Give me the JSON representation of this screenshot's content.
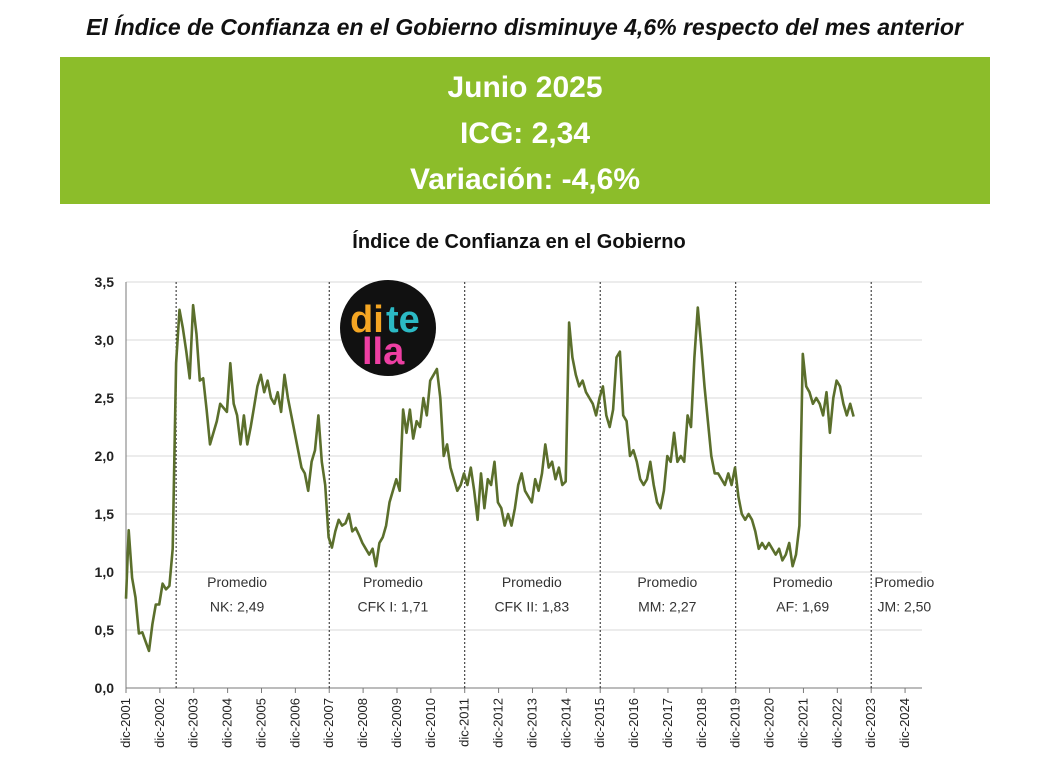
{
  "headline": "El Índice de Confianza en el Gobierno disminuye 4,6% respecto del mes anterior",
  "banner": {
    "period": "Junio 2025",
    "icg": "ICG: 2,34",
    "variation": "Variación: -4,6%",
    "color": "#8cbd2a"
  },
  "logo": {
    "text_top": "di te",
    "text_bottom": "lla",
    "icon": "ditella-logo"
  },
  "chart_data": {
    "type": "line",
    "title": "Índice de Confianza en el Gobierno",
    "xlabel": "",
    "ylabel": "",
    "ylim": [
      0,
      3.5
    ],
    "yticks": [
      "0,0",
      "0,5",
      "1,0",
      "1,5",
      "2,0",
      "2,5",
      "3,0",
      "3,5"
    ],
    "xlim": [
      2001.92,
      2025.42
    ],
    "xticks": [
      "dic-2001",
      "dic-2002",
      "dic-2003",
      "dic-2004",
      "dic-2005",
      "dic-2006",
      "dic-2007",
      "dic-2008",
      "dic-2009",
      "dic-2010",
      "dic-2011",
      "dic-2012",
      "dic-2013",
      "dic-2014",
      "dic-2015",
      "dic-2016",
      "dic-2017",
      "dic-2018",
      "dic-2019",
      "dic-2020",
      "dic-2021",
      "dic-2022",
      "dic-2023",
      "dic-2024"
    ],
    "line_color": "#5b6f2c",
    "series": [
      {
        "values": [
          [
            2001.92,
            0.77
          ],
          [
            2002.0,
            1.36
          ],
          [
            2002.1,
            0.95
          ],
          [
            2002.2,
            0.78
          ],
          [
            2002.3,
            0.47
          ],
          [
            2002.4,
            0.48
          ],
          [
            2002.5,
            0.4
          ],
          [
            2002.6,
            0.32
          ],
          [
            2002.7,
            0.55
          ],
          [
            2002.8,
            0.72
          ],
          [
            2002.9,
            0.72
          ],
          [
            2003.0,
            0.9
          ],
          [
            2003.1,
            0.85
          ],
          [
            2003.2,
            0.88
          ],
          [
            2003.3,
            1.2
          ],
          [
            2003.4,
            2.8
          ],
          [
            2003.5,
            3.26
          ],
          [
            2003.6,
            3.1
          ],
          [
            2003.7,
            2.9
          ],
          [
            2003.8,
            2.67
          ],
          [
            2003.9,
            3.3
          ],
          [
            2004.0,
            3.05
          ],
          [
            2004.1,
            2.65
          ],
          [
            2004.2,
            2.67
          ],
          [
            2004.3,
            2.4
          ],
          [
            2004.4,
            2.1
          ],
          [
            2004.6,
            2.3
          ],
          [
            2004.7,
            2.45
          ],
          [
            2004.9,
            2.38
          ],
          [
            2005.0,
            2.8
          ],
          [
            2005.1,
            2.45
          ],
          [
            2005.2,
            2.35
          ],
          [
            2005.3,
            2.1
          ],
          [
            2005.4,
            2.35
          ],
          [
            2005.5,
            2.1
          ],
          [
            2005.6,
            2.25
          ],
          [
            2005.7,
            2.42
          ],
          [
            2005.8,
            2.6
          ],
          [
            2005.9,
            2.7
          ],
          [
            2006.0,
            2.55
          ],
          [
            2006.1,
            2.65
          ],
          [
            2006.2,
            2.5
          ],
          [
            2006.3,
            2.45
          ],
          [
            2006.4,
            2.55
          ],
          [
            2006.5,
            2.38
          ],
          [
            2006.6,
            2.7
          ],
          [
            2006.7,
            2.5
          ],
          [
            2006.8,
            2.35
          ],
          [
            2006.9,
            2.2
          ],
          [
            2007.0,
            2.05
          ],
          [
            2007.1,
            1.9
          ],
          [
            2007.2,
            1.85
          ],
          [
            2007.3,
            1.7
          ],
          [
            2007.4,
            1.95
          ],
          [
            2007.5,
            2.05
          ],
          [
            2007.6,
            2.35
          ],
          [
            2007.7,
            1.95
          ],
          [
            2007.8,
            1.75
          ],
          [
            2007.9,
            1.3
          ],
          [
            2008.0,
            1.21
          ],
          [
            2008.1,
            1.35
          ],
          [
            2008.2,
            1.45
          ],
          [
            2008.3,
            1.4
          ],
          [
            2008.4,
            1.42
          ],
          [
            2008.5,
            1.5
          ],
          [
            2008.6,
            1.35
          ],
          [
            2008.7,
            1.38
          ],
          [
            2008.8,
            1.32
          ],
          [
            2008.9,
            1.25
          ],
          [
            2009.0,
            1.2
          ],
          [
            2009.1,
            1.15
          ],
          [
            2009.2,
            1.2
          ],
          [
            2009.3,
            1.05
          ],
          [
            2009.4,
            1.25
          ],
          [
            2009.5,
            1.3
          ],
          [
            2009.6,
            1.4
          ],
          [
            2009.7,
            1.6
          ],
          [
            2009.8,
            1.7
          ],
          [
            2009.9,
            1.8
          ],
          [
            2010.0,
            1.7
          ],
          [
            2010.1,
            2.4
          ],
          [
            2010.2,
            2.2
          ],
          [
            2010.3,
            2.4
          ],
          [
            2010.4,
            2.15
          ],
          [
            2010.5,
            2.3
          ],
          [
            2010.6,
            2.25
          ],
          [
            2010.7,
            2.5
          ],
          [
            2010.8,
            2.35
          ],
          [
            2010.9,
            2.65
          ],
          [
            2011.0,
            2.7
          ],
          [
            2011.1,
            2.75
          ],
          [
            2011.2,
            2.5
          ],
          [
            2011.3,
            2.0
          ],
          [
            2011.4,
            2.1
          ],
          [
            2011.5,
            1.9
          ],
          [
            2011.6,
            1.8
          ],
          [
            2011.7,
            1.7
          ],
          [
            2011.8,
            1.75
          ],
          [
            2011.9,
            1.85
          ],
          [
            2012.0,
            1.75
          ],
          [
            2012.1,
            1.9
          ],
          [
            2012.2,
            1.7
          ],
          [
            2012.3,
            1.45
          ],
          [
            2012.4,
            1.85
          ],
          [
            2012.5,
            1.55
          ],
          [
            2012.6,
            1.8
          ],
          [
            2012.7,
            1.75
          ],
          [
            2012.8,
            1.95
          ],
          [
            2012.9,
            1.6
          ],
          [
            2013.0,
            1.55
          ],
          [
            2013.1,
            1.4
          ],
          [
            2013.2,
            1.5
          ],
          [
            2013.3,
            1.4
          ],
          [
            2013.4,
            1.55
          ],
          [
            2013.5,
            1.75
          ],
          [
            2013.6,
            1.85
          ],
          [
            2013.7,
            1.7
          ],
          [
            2013.8,
            1.65
          ],
          [
            2013.9,
            1.6
          ],
          [
            2014.0,
            1.8
          ],
          [
            2014.1,
            1.7
          ],
          [
            2014.2,
            1.85
          ],
          [
            2014.3,
            2.1
          ],
          [
            2014.4,
            1.9
          ],
          [
            2014.5,
            1.95
          ],
          [
            2014.6,
            1.8
          ],
          [
            2014.7,
            1.9
          ],
          [
            2014.8,
            1.75
          ],
          [
            2014.9,
            1.78
          ],
          [
            2015.0,
            3.15
          ],
          [
            2015.1,
            2.85
          ],
          [
            2015.2,
            2.7
          ],
          [
            2015.3,
            2.6
          ],
          [
            2015.4,
            2.65
          ],
          [
            2015.5,
            2.55
          ],
          [
            2015.6,
            2.5
          ],
          [
            2015.7,
            2.45
          ],
          [
            2015.8,
            2.35
          ],
          [
            2015.9,
            2.5
          ],
          [
            2016.0,
            2.6
          ],
          [
            2016.1,
            2.35
          ],
          [
            2016.2,
            2.25
          ],
          [
            2016.3,
            2.4
          ],
          [
            2016.4,
            2.85
          ],
          [
            2016.5,
            2.9
          ],
          [
            2016.6,
            2.35
          ],
          [
            2016.7,
            2.3
          ],
          [
            2016.8,
            2.0
          ],
          [
            2016.9,
            2.05
          ],
          [
            2017.0,
            1.95
          ],
          [
            2017.1,
            1.8
          ],
          [
            2017.2,
            1.75
          ],
          [
            2017.3,
            1.8
          ],
          [
            2017.4,
            1.95
          ],
          [
            2017.5,
            1.75
          ],
          [
            2017.6,
            1.6
          ],
          [
            2017.7,
            1.55
          ],
          [
            2017.8,
            1.7
          ],
          [
            2017.9,
            2.0
          ],
          [
            2018.0,
            1.95
          ],
          [
            2018.1,
            2.2
          ],
          [
            2018.2,
            1.95
          ],
          [
            2018.3,
            2.0
          ],
          [
            2018.4,
            1.95
          ],
          [
            2018.5,
            2.35
          ],
          [
            2018.6,
            2.25
          ],
          [
            2018.7,
            2.85
          ],
          [
            2018.8,
            3.28
          ],
          [
            2018.9,
            2.95
          ],
          [
            2019.0,
            2.6
          ],
          [
            2019.1,
            2.3
          ],
          [
            2019.2,
            2.0
          ],
          [
            2019.3,
            1.85
          ],
          [
            2019.4,
            1.85
          ],
          [
            2019.5,
            1.8
          ],
          [
            2019.6,
            1.75
          ],
          [
            2019.7,
            1.85
          ],
          [
            2019.8,
            1.75
          ],
          [
            2019.9,
            1.9
          ],
          [
            2020.0,
            1.65
          ],
          [
            2020.1,
            1.5
          ],
          [
            2020.2,
            1.45
          ],
          [
            2020.3,
            1.5
          ],
          [
            2020.4,
            1.45
          ],
          [
            2020.5,
            1.35
          ],
          [
            2020.6,
            1.2
          ],
          [
            2020.7,
            1.25
          ],
          [
            2020.8,
            1.2
          ],
          [
            2020.9,
            1.25
          ],
          [
            2021.0,
            1.2
          ],
          [
            2021.1,
            1.15
          ],
          [
            2021.2,
            1.2
          ],
          [
            2021.3,
            1.1
          ],
          [
            2021.4,
            1.15
          ],
          [
            2021.5,
            1.25
          ],
          [
            2021.6,
            1.05
          ],
          [
            2021.7,
            1.15
          ],
          [
            2021.8,
            1.4
          ],
          [
            2021.9,
            2.88
          ],
          [
            2022.0,
            2.6
          ],
          [
            2022.1,
            2.55
          ],
          [
            2022.2,
            2.45
          ],
          [
            2022.3,
            2.5
          ],
          [
            2022.4,
            2.45
          ],
          [
            2022.5,
            2.35
          ],
          [
            2022.6,
            2.55
          ],
          [
            2022.7,
            2.2
          ],
          [
            2022.8,
            2.5
          ],
          [
            2022.9,
            2.65
          ],
          [
            2023.0,
            2.6
          ],
          [
            2023.1,
            2.45
          ],
          [
            2023.2,
            2.35
          ],
          [
            2023.3,
            2.45
          ],
          [
            2023.4,
            2.34
          ]
        ]
      }
    ],
    "periods": [
      {
        "start": 2003.4,
        "label1": "Promedio",
        "label2": "NK: 2,49",
        "center": 2005.2
      },
      {
        "start": 2007.92,
        "label1": "Promedio",
        "label2": "CFK I: 1,71",
        "center": 2009.8
      },
      {
        "start": 2011.92,
        "label1": "Promedio",
        "label2": "CFK II: 1,83",
        "center": 2013.9
      },
      {
        "start": 2015.92,
        "label1": "Promedio",
        "label2": "MM: 2,27",
        "center": 2017.9
      },
      {
        "start": 2019.92,
        "label1": "Promedio",
        "label2": "AF: 1,69",
        "center": 2021.9
      },
      {
        "start": 2023.92,
        "label1": "Promedio",
        "label2": "JM: 2,50",
        "center": 2024.9
      }
    ]
  }
}
